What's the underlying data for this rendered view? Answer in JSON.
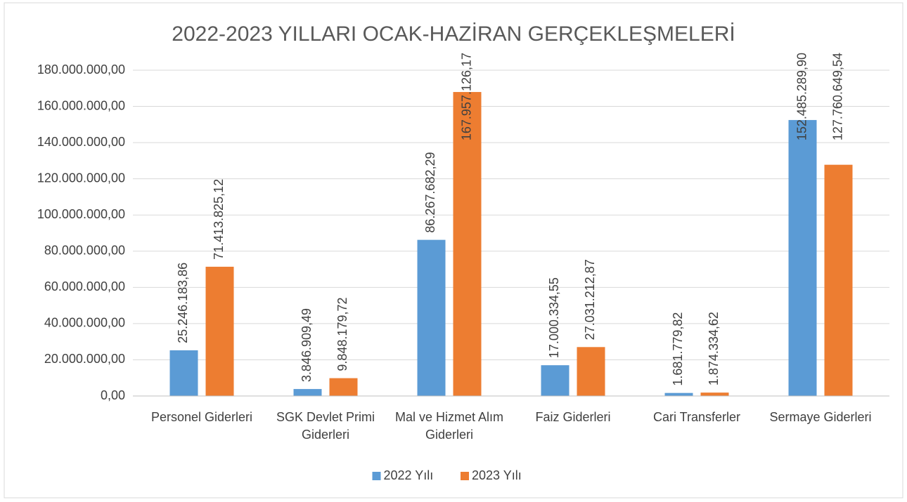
{
  "chart_data": {
    "type": "bar",
    "title": "2022-2023 YILLARI OCAK-HAZİRAN GERÇEKLEŞMELERİ",
    "categories": [
      "Personel Giderleri",
      "SGK Devlet Primi Giderleri",
      "Mal ve Hizmet Alım Giderleri",
      "Faiz Giderleri",
      "Cari Transferler",
      "Sermaye Giderleri"
    ],
    "series": [
      {
        "name": "2022 Yılı",
        "color": "#5b9bd5",
        "values": [
          25246183.86,
          3846909.49,
          86267682.29,
          17000334.55,
          1681779.82,
          152485289.9
        ],
        "value_labels": [
          "25.246.183,86",
          "3.846.909,49",
          "86.267.682,29",
          "17.000.334,55",
          "1.681.779,82",
          "152.485.289,90"
        ]
      },
      {
        "name": "2023 Yılı",
        "color": "#ed7d31",
        "values": [
          71413825.12,
          9848179.72,
          167957126.17,
          27031212.87,
          1874334.62,
          127760649.54
        ],
        "value_labels": [
          "71.413.825,12",
          "9.848.179,72",
          "167.957.126,17",
          "27.031.212,87",
          "1.874.334,62",
          "127.760.649,54"
        ]
      }
    ],
    "ylim": [
      0,
      180000000
    ],
    "yticks": [
      {
        "value": 0,
        "label": "0,00"
      },
      {
        "value": 20000000,
        "label": "20.000.000,00"
      },
      {
        "value": 40000000,
        "label": "40.000.000,00"
      },
      {
        "value": 60000000,
        "label": "60.000.000,00"
      },
      {
        "value": 80000000,
        "label": "80.000.000,00"
      },
      {
        "value": 100000000,
        "label": "100.000.000,00"
      },
      {
        "value": 120000000,
        "label": "120.000.000,00"
      },
      {
        "value": 140000000,
        "label": "140.000.000,00"
      },
      {
        "value": 160000000,
        "label": "160.000.000,00"
      },
      {
        "value": 180000000,
        "label": "180.000.000,00"
      }
    ],
    "grid": true,
    "legend": "bottom"
  }
}
